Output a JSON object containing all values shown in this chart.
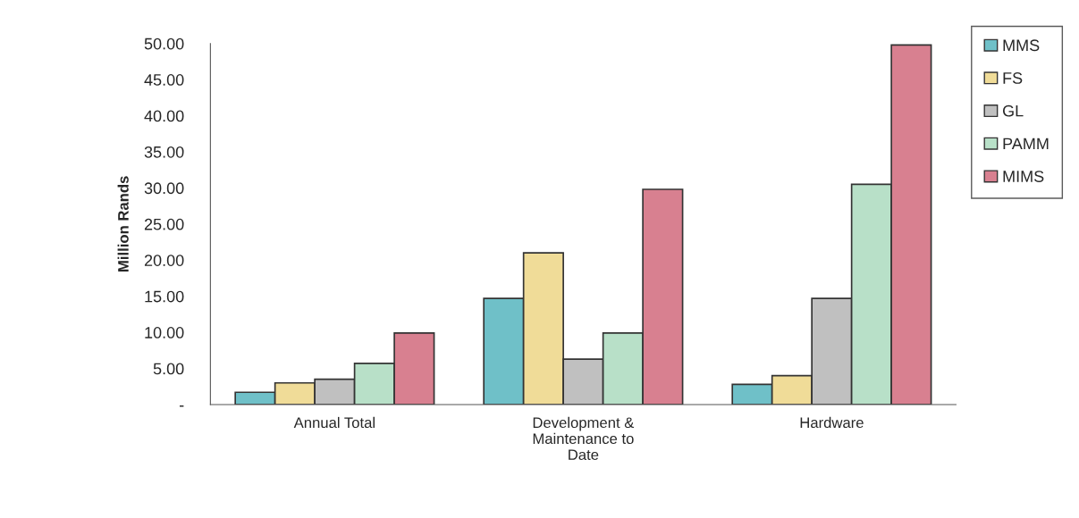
{
  "chart_data": {
    "type": "bar",
    "ylabel": "Million Rands",
    "categories": [
      "Annual Total",
      "Development &\nMaintenance to\nDate",
      "Hardware"
    ],
    "series": [
      {
        "name": "MMS",
        "color": "#6fc0c8",
        "values": [
          1.7,
          14.7,
          2.8
        ]
      },
      {
        "name": "FS",
        "color": "#f0dc98",
        "values": [
          3.0,
          21.0,
          4.0
        ]
      },
      {
        "name": "GL",
        "color": "#c0c0c0",
        "values": [
          3.5,
          6.3,
          14.7
        ]
      },
      {
        "name": "PAMM",
        "color": "#b8e0c8",
        "values": [
          5.7,
          9.9,
          30.5
        ]
      },
      {
        "name": "MIMS",
        "color": "#d88090",
        "values": [
          9.9,
          29.8,
          49.8
        ]
      }
    ],
    "ylim": [
      0,
      50
    ],
    "yticks": [
      {
        "value": 0,
        "label": "-"
      },
      {
        "value": 5,
        "label": "5.00"
      },
      {
        "value": 10,
        "label": "10.00"
      },
      {
        "value": 15,
        "label": "15.00"
      },
      {
        "value": 20,
        "label": "20.00"
      },
      {
        "value": 25,
        "label": "25.00"
      },
      {
        "value": 30,
        "label": "30.00"
      },
      {
        "value": 35,
        "label": "35.00"
      },
      {
        "value": 40,
        "label": "40.00"
      },
      {
        "value": 45,
        "label": "45.00"
      },
      {
        "value": 50,
        "label": "50.00"
      }
    ],
    "grid": false,
    "legend": "top right"
  }
}
